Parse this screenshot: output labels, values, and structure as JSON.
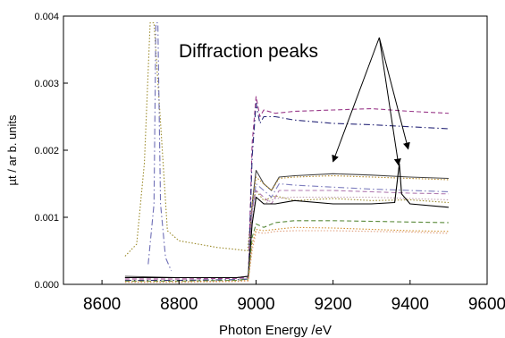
{
  "chart_data": {
    "type": "line",
    "title": "",
    "xlabel": "Photon Energy /eV",
    "ylabel": "µt / ar b. units",
    "xlim": [
      8500,
      9600
    ],
    "ylim": [
      0,
      0.004
    ],
    "xticks": [
      8600,
      8800,
      9000,
      9200,
      9400,
      9600
    ],
    "yticks": [
      0.0,
      0.001,
      0.002,
      0.003,
      0.004
    ],
    "ytick_labels": [
      "0.000",
      "0.001",
      "0.002",
      "0.003",
      "0.004"
    ],
    "grid": false,
    "legend": "none",
    "annotation": {
      "text": "Diffraction peaks",
      "origin": [
        9320,
        0.00368
      ],
      "targets": [
        [
          9200,
          0.00183
        ],
        [
          9370,
          0.00178
        ],
        [
          9395,
          0.00202
        ]
      ]
    },
    "series": [
      {
        "color": "#9b8a2a",
        "style": "dotted",
        "x": [
          8660,
          8690,
          8710,
          8725,
          8735,
          8750,
          8770,
          8800,
          8850,
          8900,
          8950,
          8978,
          8990,
          9000,
          9020,
          9050,
          9100,
          9200,
          9300,
          9400,
          9500
        ],
        "y": [
          0.00042,
          0.0006,
          0.0018,
          0.0039,
          0.0039,
          0.0026,
          0.0008,
          0.00065,
          0.0006,
          0.00055,
          0.00052,
          0.0005,
          0.0012,
          0.0014,
          0.00125,
          0.00132,
          0.00125,
          0.00128,
          0.00125,
          0.00126,
          0.00122
        ]
      },
      {
        "color": "#6f6fb6",
        "style": "dashdot",
        "x": [
          8720,
          8735,
          8740,
          8745,
          8752,
          8765,
          8780
        ],
        "y": [
          0.0003,
          0.0012,
          0.0039,
          0.0039,
          0.0012,
          0.0004,
          0.0002
        ]
      },
      {
        "color": "#9a3a8a",
        "style": "dashed",
        "x": [
          8660,
          8800,
          8950,
          8980,
          8990,
          9000,
          9010,
          9020,
          9050,
          9100,
          9200,
          9300,
          9400,
          9500
        ],
        "y": [
          8e-05,
          8e-05,
          9e-05,
          0.0001,
          0.0021,
          0.0028,
          0.0025,
          0.0026,
          0.00255,
          0.00258,
          0.0026,
          0.00262,
          0.00258,
          0.00255
        ]
      },
      {
        "color": "#2a2a7a",
        "style": "dashdot",
        "x": [
          8660,
          8800,
          8950,
          8980,
          8990,
          9000,
          9010,
          9020,
          9050,
          9100,
          9200,
          9300,
          9400,
          9500
        ],
        "y": [
          6e-05,
          6e-05,
          7e-05,
          8e-05,
          0.0019,
          0.0027,
          0.0024,
          0.0025,
          0.0025,
          0.00245,
          0.0024,
          0.00238,
          0.00235,
          0.00232
        ]
      },
      {
        "color": "#444444",
        "style": "solid",
        "x": [
          8660,
          8800,
          8950,
          8980,
          8990,
          9000,
          9020,
          9040,
          9060,
          9100,
          9200,
          9300,
          9400,
          9500
        ],
        "y": [
          0.00012,
          0.0001,
          0.0001,
          0.00012,
          0.0012,
          0.0017,
          0.0015,
          0.0014,
          0.0016,
          0.00162,
          0.00165,
          0.00163,
          0.0016,
          0.00158
        ]
      },
      {
        "color": "#b58a2a",
        "style": "dotted",
        "x": [
          8660,
          8800,
          8950,
          8980,
          8990,
          9000,
          9020,
          9040,
          9060,
          9100,
          9200,
          9300,
          9400,
          9500
        ],
        "y": [
          0.0001,
          0.0001,
          0.0001,
          0.00012,
          0.0012,
          0.0016,
          0.0015,
          0.0014,
          0.00158,
          0.0016,
          0.00162,
          0.0016,
          0.00158,
          0.00156
        ]
      },
      {
        "color": "#7f7fbf",
        "style": "dashdot",
        "x": [
          8660,
          8800,
          8950,
          8980,
          8990,
          9000,
          9020,
          9040,
          9060,
          9100,
          9200,
          9300,
          9400,
          9500
        ],
        "y": [
          0.0001,
          0.0001,
          0.0001,
          0.00012,
          0.0011,
          0.0015,
          0.0014,
          0.0013,
          0.0015,
          0.00148,
          0.00145,
          0.00142,
          0.0014,
          0.00138
        ]
      },
      {
        "color": "#b07ab0",
        "style": "dashed",
        "x": [
          8660,
          8800,
          8950,
          8980,
          8990,
          9000,
          9020,
          9040,
          9060,
          9100,
          9200,
          9300,
          9400,
          9500
        ],
        "y": [
          0.0001,
          0.0001,
          0.0001,
          0.00012,
          0.0011,
          0.0014,
          0.0013,
          0.0012,
          0.0014,
          0.0014,
          0.0014,
          0.00138,
          0.00136,
          0.00135
        ]
      },
      {
        "color": "#c0a0b0",
        "style": "dotted",
        "x": [
          8660,
          8800,
          8950,
          8980,
          8990,
          9000,
          9020,
          9050,
          9100,
          9200,
          9300,
          9400,
          9500
        ],
        "y": [
          0.0001,
          0.0001,
          0.0001,
          0.00012,
          0.001,
          0.0013,
          0.0012,
          0.00128,
          0.0013,
          0.0013,
          0.0013,
          0.00128,
          0.00126
        ]
      },
      {
        "color": "#000000",
        "style": "solid",
        "x": [
          8660,
          8800,
          8950,
          8980,
          8990,
          9000,
          9020,
          9050,
          9100,
          9200,
          9300,
          9360,
          9368,
          9372,
          9378,
          9400,
          9500
        ],
        "y": [
          0.0001,
          0.0001,
          0.0001,
          0.00012,
          0.0009,
          0.0013,
          0.0012,
          0.0012,
          0.00125,
          0.0012,
          0.0012,
          0.00122,
          0.0016,
          0.0018,
          0.00135,
          0.0012,
          0.00115
        ]
      },
      {
        "color": "#5a8a3a",
        "style": "dashed",
        "x": [
          8660,
          8800,
          8950,
          8980,
          8990,
          9000,
          9020,
          9050,
          9100,
          9200,
          9300,
          9400,
          9500
        ],
        "y": [
          5e-05,
          5e-05,
          6e-05,
          8e-05,
          0.0007,
          0.0009,
          0.00085,
          0.00092,
          0.00095,
          0.00095,
          0.00094,
          0.00093,
          0.00092
        ]
      },
      {
        "color": "#d09030",
        "style": "dotted",
        "x": [
          8660,
          8800,
          8950,
          8980,
          8990,
          9000,
          9020,
          9050,
          9100,
          9200,
          9300,
          9400,
          9500
        ],
        "y": [
          4e-05,
          4e-05,
          5e-05,
          6e-05,
          0.0006,
          0.00082,
          0.0008,
          0.00082,
          0.00085,
          0.00084,
          0.00082,
          0.0008,
          0.00079
        ]
      },
      {
        "color": "#e0a080",
        "style": "dotted",
        "x": [
          8660,
          8800,
          8950,
          8980,
          8990,
          9000,
          9020,
          9050,
          9100,
          9200,
          9300,
          9400,
          9500
        ],
        "y": [
          3e-05,
          3e-05,
          4e-05,
          5e-05,
          0.0005,
          0.00078,
          0.00076,
          0.00079,
          0.0008,
          0.0008,
          0.00079,
          0.00078,
          0.00076
        ]
      }
    ]
  }
}
